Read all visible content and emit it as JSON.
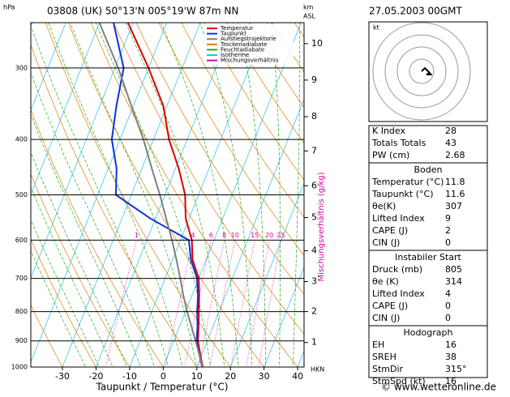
{
  "header": {
    "station": "03808 (UK)  50°13'N 005°19'W  87m NN",
    "date": "27.05.2003 00GMT",
    "p_unit": "hPa",
    "h_unit": "km",
    "h_ref": "ASL"
  },
  "chart_data": {
    "type": "skewt",
    "x_label": "Taupunkt / Temperatur (°C)",
    "y2_label": "Mischungsverhältnis (g/kg)",
    "xlim": [
      -39.4,
      41.9
    ],
    "ylim": [
      1000,
      250
    ],
    "xticks": [
      -30,
      -20,
      -10,
      0,
      10,
      20,
      30,
      40
    ],
    "yticks": [
      300,
      400,
      500,
      600,
      700,
      800,
      900,
      1000
    ],
    "height_ticks": [
      {
        "value": 906,
        "label": "1"
      },
      {
        "value": 800,
        "label": "2"
      },
      {
        "value": 709,
        "label": "3"
      },
      {
        "value": 626,
        "label": "4"
      },
      {
        "value": 548,
        "label": "5"
      },
      {
        "value": 482,
        "label": "6"
      },
      {
        "value": 419,
        "label": "7"
      },
      {
        "value": 365,
        "label": "8"
      },
      {
        "value": 315,
        "label": "9"
      },
      {
        "value": 272,
        "label": "10"
      }
    ],
    "lcl_label": "HKN",
    "mixing_ratios": [
      1,
      4,
      6,
      8,
      10,
      15,
      20,
      25
    ],
    "pressure": [
      1000,
      950,
      900,
      850,
      800,
      750,
      700,
      650,
      600,
      550,
      500,
      450,
      400,
      350,
      300,
      250
    ],
    "series": [
      {
        "name": "Temperatur",
        "color": "#dd0000",
        "values": [
          11.8,
          9.5,
          7.2,
          5.7,
          4.0,
          2.2,
          0.0,
          -4.0,
          -6.6,
          -11.0,
          -14.0,
          -19.0,
          -25.4,
          -31.0,
          -40.0,
          -51.5
        ]
      },
      {
        "name": "Taupunkt",
        "color": "#1030e0",
        "values": [
          11.6,
          9.2,
          6.8,
          5.4,
          3.5,
          1.8,
          -0.5,
          -4.5,
          -7.5,
          -21.5,
          -34.6,
          -37.5,
          -42.4,
          -45.0,
          -47.4,
          -55.8
        ]
      },
      {
        "name": "Aufstiegstrajektorie",
        "color": "#808080",
        "values": [
          11.8,
          9.2,
          6.5,
          3.6,
          0.5,
          -2.5,
          -5.5,
          -8.8,
          -12.5,
          -16.8,
          -21.5,
          -27.0,
          -33.0,
          -40.5,
          -49.0,
          -60.0
        ]
      }
    ],
    "background_lines": [
      {
        "name": "Trockenadiabate",
        "color": "#e08000"
      },
      {
        "name": "Feuchtadiabate",
        "color": "#20b020"
      },
      {
        "name": "Isotherme",
        "color": "#20c0e0"
      },
      {
        "name": "Mischungsverhältnis",
        "color": "#e000a0"
      }
    ]
  },
  "hodograph": {
    "unit": "kt"
  },
  "table": {
    "top": [
      [
        "K Index",
        "28"
      ],
      [
        "Totals Totals",
        "43"
      ],
      [
        "PW (cm)",
        "2.68"
      ]
    ],
    "sections": [
      {
        "title": "Boden",
        "rows": [
          [
            "Temperatur (°C)",
            "11.8"
          ],
          [
            "Taupunkt (°C)",
            "11.6"
          ],
          [
            "θe(K)",
            "307"
          ],
          [
            "Lifted Index",
            "9"
          ],
          [
            "CAPE (J)",
            "2"
          ],
          [
            "CIN (J)",
            "0"
          ]
        ]
      },
      {
        "title": "Instabiler Start",
        "rows": [
          [
            "Druck (mb)",
            "805"
          ],
          [
            "θe (K)",
            "314"
          ],
          [
            "Lifted Index",
            "4"
          ],
          [
            "CAPE (J)",
            "0"
          ],
          [
            "CIN (J)",
            "0"
          ]
        ]
      },
      {
        "title": "Hodograph",
        "rows": [
          [
            "EH",
            "16"
          ],
          [
            "SREH",
            "38"
          ],
          [
            "StmDir",
            "315°"
          ],
          [
            "StmSpd (kt)",
            "16"
          ]
        ]
      }
    ]
  },
  "footer": "© www.wetteronline.de"
}
